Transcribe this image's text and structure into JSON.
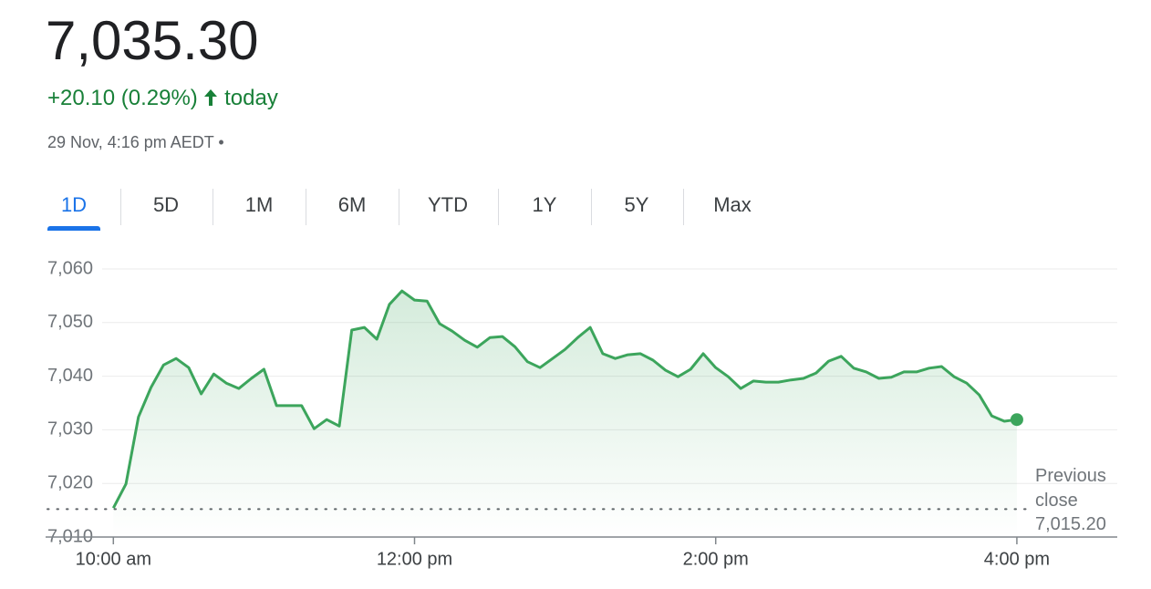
{
  "header": {
    "price": "7,035.30",
    "change": "+20.10 (0.29%)",
    "change_suffix": "today",
    "timestamp": "29 Nov, 4:16 pm AEDT •"
  },
  "tabs": [
    "1D",
    "5D",
    "1M",
    "6M",
    "YTD",
    "1Y",
    "5Y",
    "Max"
  ],
  "selected_tab": 0,
  "chart_data": {
    "type": "line",
    "color": "#3ca55c",
    "x": [
      600,
      605,
      610,
      615,
      620,
      625,
      630,
      635,
      640,
      645,
      650,
      655,
      660,
      665,
      670,
      675,
      680,
      685,
      690,
      695,
      700,
      705,
      710,
      715,
      720,
      725,
      730,
      735,
      740,
      745,
      750,
      755,
      760,
      765,
      770,
      775,
      780,
      785,
      790,
      795,
      800,
      805,
      810,
      815,
      820,
      825,
      830,
      835,
      840,
      845,
      850,
      855,
      860,
      865,
      870,
      875,
      880,
      885,
      890,
      895,
      900,
      905,
      910,
      915,
      920,
      925,
      930,
      935,
      940,
      945,
      950,
      955,
      960
    ],
    "values": [
      7015.4,
      7019.9,
      7032.4,
      7037.9,
      7042.1,
      7043.3,
      7041.6,
      7036.7,
      7040.4,
      7038.7,
      7037.7,
      7039.6,
      7041.3,
      7034.5,
      7034.5,
      7034.5,
      7030.2,
      7031.9,
      7030.7,
      7048.6,
      7049.1,
      7046.9,
      7053.4,
      7055.9,
      7054.2,
      7054.0,
      7049.8,
      7048.4,
      7046.7,
      7045.4,
      7047.2,
      7047.4,
      7045.5,
      7042.7,
      7041.6,
      7043.3,
      7045.0,
      7047.2,
      7049.1,
      7044.2,
      7043.3,
      7044.0,
      7044.2,
      7043.0,
      7041.1,
      7039.9,
      7041.3,
      7044.2,
      7041.6,
      7039.9,
      7037.7,
      7039.1,
      7038.9,
      7038.9,
      7039.3,
      7039.6,
      7040.6,
      7042.8,
      7043.7,
      7041.5,
      7040.8,
      7039.6,
      7039.8,
      7040.8,
      7040.8,
      7041.5,
      7041.8,
      7039.9,
      7038.7,
      7036.5,
      7032.6,
      7031.6,
      7031.9
    ],
    "xlim": [
      573,
      1000
    ],
    "xticks": [
      {
        "value": 600,
        "label": "10:00 am"
      },
      {
        "value": 720,
        "label": "12:00 pm"
      },
      {
        "value": 840,
        "label": "2:00 pm"
      },
      {
        "value": 960,
        "label": "4:00 pm"
      }
    ],
    "ylim": [
      7010,
      7060
    ],
    "yticks": [
      {
        "value": 7010,
        "label": "7,010"
      },
      {
        "value": 7020,
        "label": "7,020"
      },
      {
        "value": 7030,
        "label": "7,030"
      },
      {
        "value": 7040,
        "label": "7,040"
      },
      {
        "value": 7050,
        "label": "7,050"
      },
      {
        "value": 7060,
        "label": "7,060"
      }
    ],
    "grid": true,
    "previous_close": {
      "label": "Previous close",
      "value": 7015.2,
      "value_label": "7,015.20"
    }
  }
}
